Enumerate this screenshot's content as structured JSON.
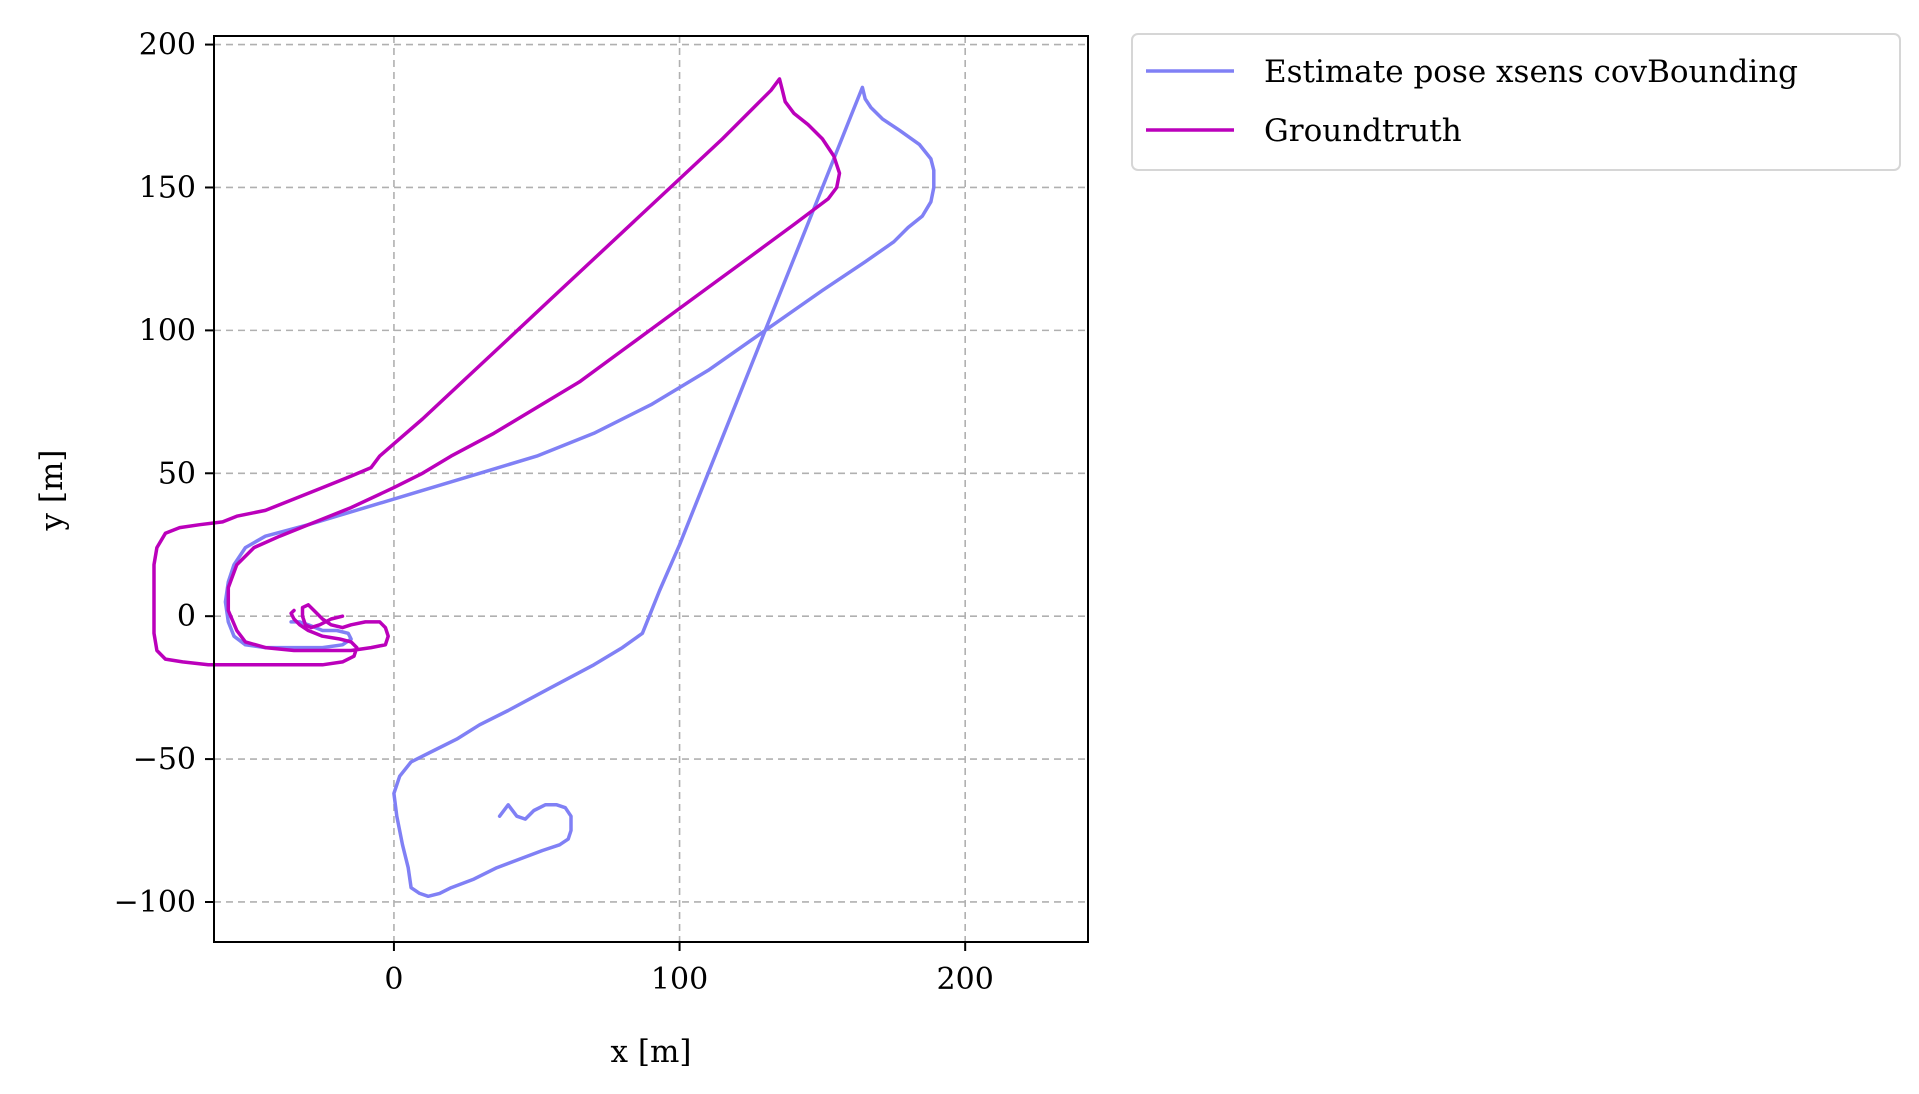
{
  "chart_data": {
    "type": "line",
    "xlabel": "x [m]",
    "ylabel": "y [m]",
    "xlim": [
      -63,
      243
    ],
    "ylim": [
      -114,
      203
    ],
    "xticks": [
      0,
      100,
      200
    ],
    "yticks": [
      -100,
      -50,
      0,
      50,
      100,
      150,
      200
    ],
    "xtick_labels": [
      "0",
      "100",
      "200"
    ],
    "ytick_labels": [
      "−100",
      "−50",
      "0",
      "50",
      "100",
      "150",
      "200"
    ],
    "grid": true,
    "legend_position": "outside-top-right",
    "series": [
      {
        "name": "Estimate pose xsens covBounding",
        "color": "#8080f5",
        "points": [
          [
            37,
            -70
          ],
          [
            40,
            -66
          ],
          [
            43,
            -70
          ],
          [
            46,
            -71
          ],
          [
            49,
            -68
          ],
          [
            53,
            -66
          ],
          [
            57,
            -66
          ],
          [
            60,
            -67
          ],
          [
            62,
            -70
          ],
          [
            62,
            -75
          ],
          [
            61,
            -78
          ],
          [
            58,
            -80
          ],
          [
            52,
            -82
          ],
          [
            44,
            -85
          ],
          [
            36,
            -88
          ],
          [
            28,
            -92
          ],
          [
            20,
            -95
          ],
          [
            16,
            -97
          ],
          [
            12,
            -98
          ],
          [
            9,
            -97
          ],
          [
            6,
            -95
          ],
          [
            5,
            -88
          ],
          [
            3,
            -80
          ],
          [
            1,
            -70
          ],
          [
            0,
            -62
          ],
          [
            2,
            -56
          ],
          [
            6,
            -51
          ],
          [
            14,
            -47
          ],
          [
            22,
            -43
          ],
          [
            30,
            -38
          ],
          [
            40,
            -33
          ],
          [
            55,
            -25
          ],
          [
            70,
            -17
          ],
          [
            80,
            -11
          ],
          [
            87,
            -6
          ],
          [
            93,
            9
          ],
          [
            100,
            25
          ],
          [
            110,
            50
          ],
          [
            120,
            75
          ],
          [
            130,
            100
          ],
          [
            140,
            125
          ],
          [
            150,
            150
          ],
          [
            160,
            175
          ],
          [
            164,
            185
          ],
          [
            165,
            181
          ],
          [
            167,
            178
          ],
          [
            171,
            174
          ],
          [
            177,
            170
          ],
          [
            184,
            165
          ],
          [
            188,
            160
          ],
          [
            189,
            156
          ],
          [
            189,
            150
          ],
          [
            188,
            145
          ],
          [
            185,
            140
          ],
          [
            180,
            136
          ],
          [
            175,
            131
          ],
          [
            165,
            124
          ],
          [
            150,
            114
          ],
          [
            130,
            100
          ],
          [
            110,
            86
          ],
          [
            90,
            74
          ],
          [
            70,
            64
          ],
          [
            50,
            56
          ],
          [
            30,
            50
          ],
          [
            10,
            44
          ],
          [
            -10,
            38
          ],
          [
            -30,
            32
          ],
          [
            -45,
            28
          ],
          [
            -52,
            24
          ],
          [
            -56,
            18
          ],
          [
            -58,
            12
          ],
          [
            -59,
            5
          ],
          [
            -58,
            -2
          ],
          [
            -56,
            -7
          ],
          [
            -52,
            -10
          ],
          [
            -45,
            -11
          ],
          [
            -35,
            -11
          ],
          [
            -25,
            -11
          ],
          [
            -18,
            -10
          ],
          [
            -15,
            -8
          ],
          [
            -16,
            -6
          ],
          [
            -20,
            -5
          ],
          [
            -25,
            -5
          ],
          [
            -30,
            -3
          ],
          [
            -33,
            -2
          ],
          [
            -36,
            -2
          ]
        ]
      },
      {
        "name": "Groundtruth",
        "color": "#bb00bb",
        "points": [
          [
            -18,
            0
          ],
          [
            -22,
            -1
          ],
          [
            -26,
            -3
          ],
          [
            -29,
            -4
          ],
          [
            -31,
            -3
          ],
          [
            -32,
            0
          ],
          [
            -32,
            3
          ],
          [
            -30,
            4
          ],
          [
            -28,
            2
          ],
          [
            -25,
            -1
          ],
          [
            -22,
            -3
          ],
          [
            -18,
            -4
          ],
          [
            -15,
            -3
          ],
          [
            -10,
            -2
          ],
          [
            -5,
            -2
          ],
          [
            -3,
            -4
          ],
          [
            -2,
            -7
          ],
          [
            -3,
            -10
          ],
          [
            -8,
            -11
          ],
          [
            -15,
            -12
          ],
          [
            -25,
            -12
          ],
          [
            -35,
            -12
          ],
          [
            -45,
            -11
          ],
          [
            -52,
            -9
          ],
          [
            -55,
            -5
          ],
          [
            -58,
            2
          ],
          [
            -58,
            10
          ],
          [
            -55,
            18
          ],
          [
            -49,
            24
          ],
          [
            -40,
            28
          ],
          [
            -30,
            32
          ],
          [
            -15,
            38
          ],
          [
            0,
            45
          ],
          [
            10,
            50
          ],
          [
            20,
            56
          ],
          [
            35,
            64
          ],
          [
            50,
            73
          ],
          [
            65,
            82
          ],
          [
            80,
            93
          ],
          [
            95,
            104
          ],
          [
            110,
            115
          ],
          [
            125,
            126
          ],
          [
            140,
            137
          ],
          [
            152,
            146
          ],
          [
            155,
            150
          ],
          [
            156,
            155
          ],
          [
            154,
            161
          ],
          [
            150,
            167
          ],
          [
            145,
            172
          ],
          [
            140,
            176
          ],
          [
            137,
            180
          ],
          [
            136,
            184
          ],
          [
            135,
            188
          ],
          [
            132,
            184
          ],
          [
            126,
            178
          ],
          [
            115,
            167
          ],
          [
            100,
            153
          ],
          [
            85,
            139
          ],
          [
            70,
            125
          ],
          [
            55,
            111
          ],
          [
            40,
            97
          ],
          [
            25,
            83
          ],
          [
            10,
            69
          ],
          [
            -5,
            56
          ],
          [
            -8,
            52
          ],
          [
            -15,
            49
          ],
          [
            -25,
            45
          ],
          [
            -35,
            41
          ],
          [
            -45,
            37
          ],
          [
            -55,
            35
          ],
          [
            -60,
            33
          ],
          [
            -68,
            32
          ],
          [
            -75,
            31
          ],
          [
            -80,
            29
          ],
          [
            -83,
            24
          ],
          [
            -84,
            18
          ],
          [
            -84,
            10
          ],
          [
            -84,
            2
          ],
          [
            -84,
            -6
          ],
          [
            -83,
            -12
          ],
          [
            -80,
            -15
          ],
          [
            -74,
            -16
          ],
          [
            -65,
            -17
          ],
          [
            -55,
            -17
          ],
          [
            -45,
            -17
          ],
          [
            -35,
            -17
          ],
          [
            -25,
            -17
          ],
          [
            -18,
            -16
          ],
          [
            -14,
            -14
          ],
          [
            -13,
            -11
          ],
          [
            -15,
            -9
          ],
          [
            -19,
            -8
          ],
          [
            -25,
            -7
          ],
          [
            -30,
            -5
          ],
          [
            -33,
            -3
          ],
          [
            -35,
            -1
          ],
          [
            -36,
            1
          ],
          [
            -35,
            2
          ]
        ]
      }
    ]
  }
}
